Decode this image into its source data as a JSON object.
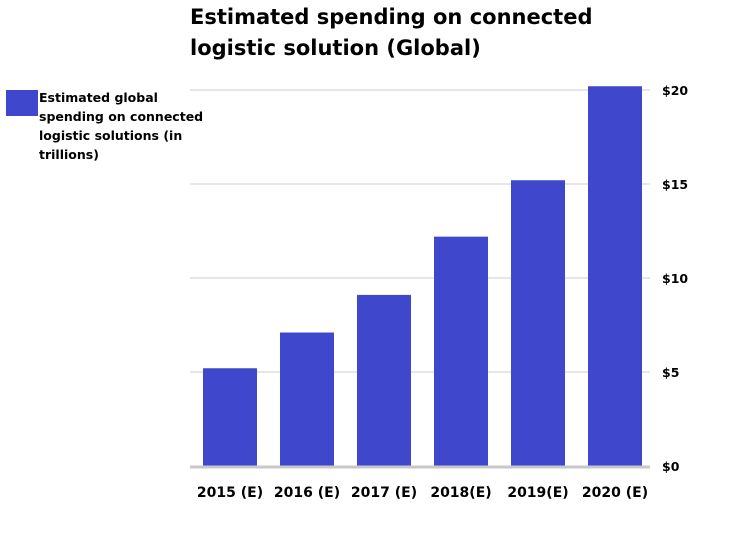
{
  "chart_data": {
    "type": "bar",
    "title": "Estimated spending on connected\nlogistic solution (Global)",
    "categories": [
      "2015 (E)",
      "2016 (E)",
      "2017 (E)",
      "2018(E)",
      "2019(E)",
      "2020 (E)"
    ],
    "series": [
      {
        "name": "Estimated global spending on connected logistic solutions (in trillions)",
        "values": [
          5.2,
          7.1,
          9.1,
          12.2,
          15.2,
          20.2
        ]
      }
    ],
    "y_ticks": [
      0,
      5,
      10,
      15,
      20
    ],
    "y_tick_labels": [
      "$0",
      "$5",
      "$10",
      "$15",
      "$20"
    ],
    "ylim": [
      0,
      20
    ],
    "xlabel": "",
    "ylabel": "",
    "grid": true,
    "legend_position": "left",
    "colors": {
      "bar": "#3f48cc",
      "grid": "#e6e6e6",
      "axis": "#c8c8c8"
    }
  }
}
